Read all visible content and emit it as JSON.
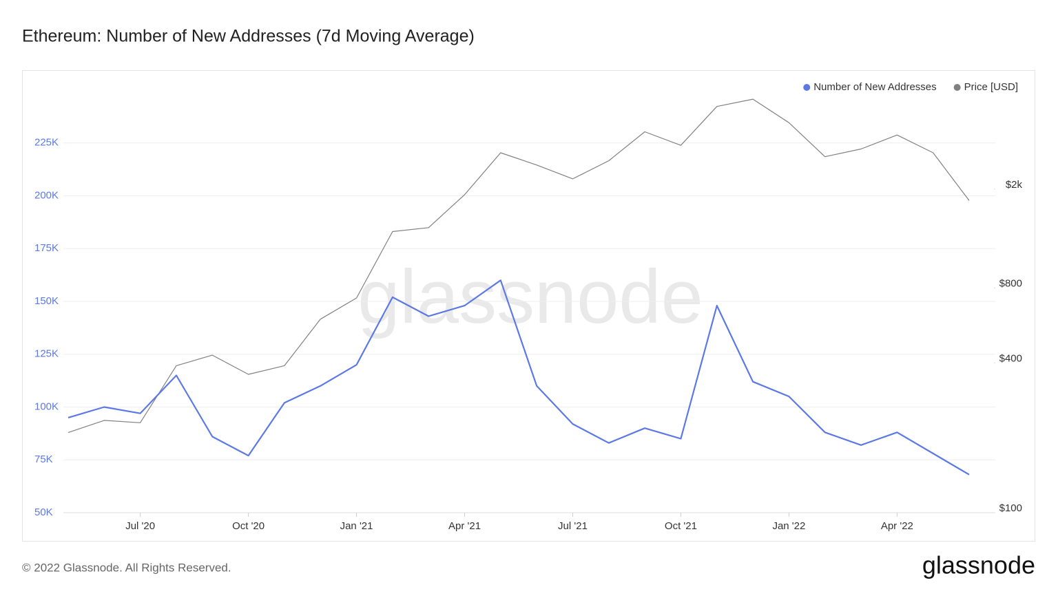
{
  "chart_data": {
    "type": "line",
    "title": "Ethereum: Number of New Addresses (7d Moving Average)",
    "watermark": "glassnode",
    "footer": "© 2022 Glassnode. All Rights Reserved.",
    "brand": "glassnode",
    "legend_position": "top-right",
    "grid": true,
    "x": [
      "2020-05",
      "2020-06",
      "2020-07",
      "2020-08",
      "2020-09",
      "2020-10",
      "2020-11",
      "2020-12",
      "2021-01",
      "2021-02",
      "2021-03",
      "2021-04",
      "2021-05",
      "2021-06",
      "2021-07",
      "2021-08",
      "2021-09",
      "2021-10",
      "2021-11",
      "2021-12",
      "2022-01",
      "2022-02",
      "2022-03",
      "2022-04",
      "2022-05",
      "2022-06"
    ],
    "xlim": [
      "2020-05",
      "2022-06"
    ],
    "xticks": [
      {
        "value": "2020-07",
        "label": "Jul '20"
      },
      {
        "value": "2020-10",
        "label": "Oct '20"
      },
      {
        "value": "2021-01",
        "label": "Jan '21"
      },
      {
        "value": "2021-04",
        "label": "Apr '21"
      },
      {
        "value": "2021-07",
        "label": "Jul '21"
      },
      {
        "value": "2021-10",
        "label": "Oct '21"
      },
      {
        "value": "2022-01",
        "label": "Jan '22"
      },
      {
        "value": "2022-04",
        "label": "Apr '22"
      }
    ],
    "ylim": [
      50000,
      250000
    ],
    "yticks": [
      {
        "value": 50000,
        "label": "50K"
      },
      {
        "value": 75000,
        "label": "75K"
      },
      {
        "value": 100000,
        "label": "100K"
      },
      {
        "value": 125000,
        "label": "125K"
      },
      {
        "value": 150000,
        "label": "150K"
      },
      {
        "value": 175000,
        "label": "175K"
      },
      {
        "value": 200000,
        "label": "200K"
      },
      {
        "value": 225000,
        "label": "225K"
      }
    ],
    "y2lim": [
      100,
      5000
    ],
    "y2scale": "log",
    "y2ticks": [
      {
        "value": 100,
        "label": "$100"
      },
      {
        "value": 400,
        "label": "$400"
      },
      {
        "value": 800,
        "label": "$800"
      },
      {
        "value": 2000,
        "label": "$2k"
      }
    ],
    "series": [
      {
        "name": "Number of New Addresses",
        "color": "#5b78e5",
        "axis": "y",
        "values": [
          95000,
          100000,
          97000,
          115000,
          86000,
          77000,
          102000,
          110000,
          120000,
          152000,
          143000,
          148000,
          160000,
          110000,
          92000,
          83000,
          90000,
          85000,
          148000,
          112000,
          105000,
          88000,
          82000,
          88000,
          78000,
          68000
        ]
      },
      {
        "name": "Price [USD]",
        "color": "#808080",
        "axis": "y2",
        "values": [
          210,
          235,
          230,
          390,
          430,
          360,
          390,
          600,
          730,
          1350,
          1400,
          1900,
          2800,
          2500,
          2200,
          2600,
          3400,
          3000,
          4300,
          4600,
          3700,
          2700,
          2900,
          3300,
          2800,
          1800
        ]
      }
    ]
  }
}
